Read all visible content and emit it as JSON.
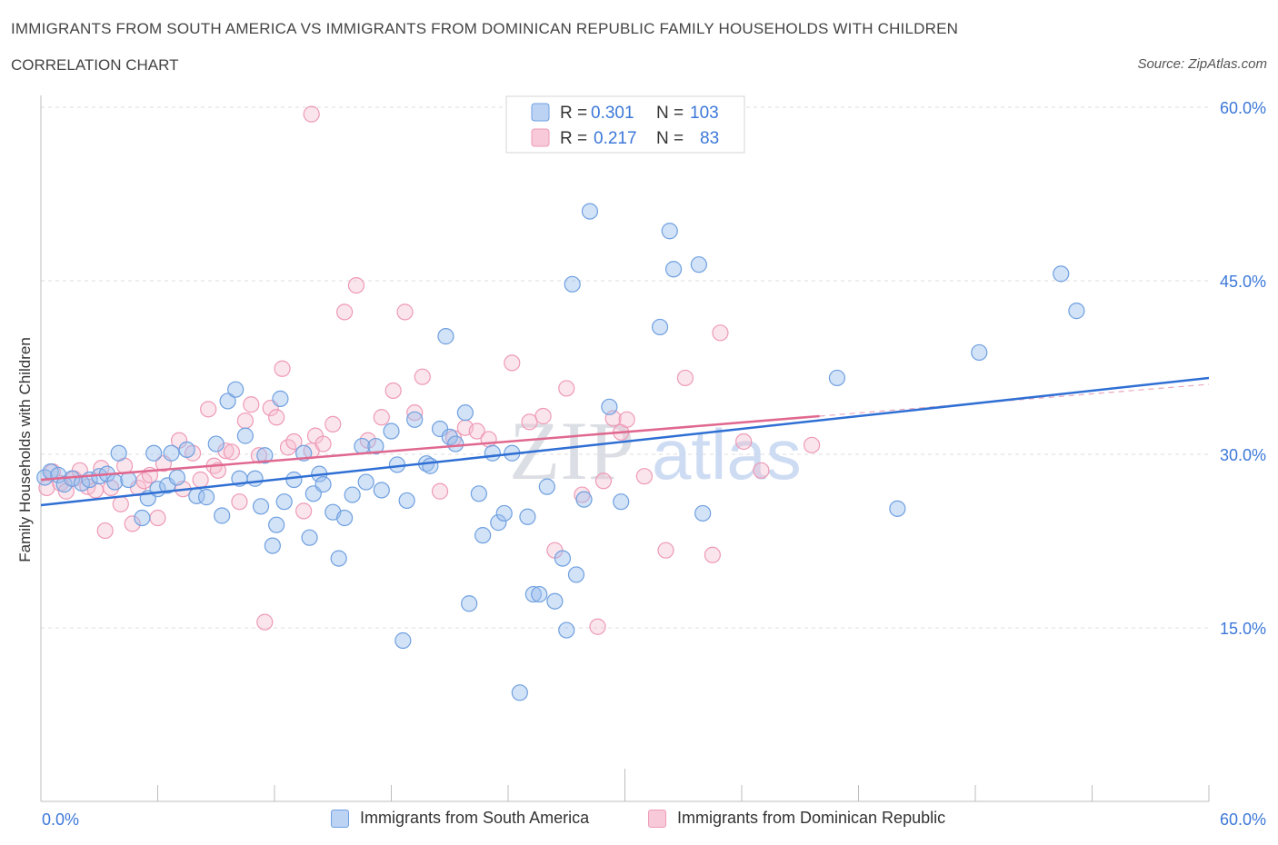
{
  "title": "IMMIGRANTS FROM SOUTH AMERICA VS IMMIGRANTS FROM DOMINICAN REPUBLIC FAMILY HOUSEHOLDS WITH CHILDREN",
  "subtitle": "CORRELATION CHART",
  "source": "Source: ZipAtlas.com",
  "watermark": {
    "zip": "ZIP",
    "atlas": "atlas"
  },
  "colors": {
    "blue": "#6fa0e0",
    "blue_line": "#2f6fd4",
    "pink": "#ee9ab6",
    "pink_line": "#e0688f",
    "tick_text": "#3c78d8"
  },
  "stats": {
    "blue": {
      "r_label": "R =",
      "r_value": "0.301",
      "n_label": "N =",
      "n_value": "103"
    },
    "pink": {
      "r_label": "R =",
      "r_value": "0.217",
      "n_label": "N =",
      "n_value": "83"
    }
  },
  "chart_data": {
    "type": "scatter",
    "title": "IMMIGRANTS FROM SOUTH AMERICA VS IMMIGRANTS FROM DOMINICAN REPUBLIC FAMILY HOUSEHOLDS WITH CHILDREN",
    "xlabel": "",
    "ylabel": "Family Households with Children",
    "xlim": [
      0,
      60
    ],
    "ylim": [
      0,
      60
    ],
    "x_tick_labels": [
      "0.0%",
      "60.0%"
    ],
    "y_ticks": [
      15,
      30,
      45,
      60
    ],
    "y_tick_labels": [
      "15.0%",
      "30.0%",
      "45.0%",
      "60.0%"
    ],
    "grid": true,
    "legend": "bottom",
    "series": [
      {
        "name": "Immigrants from South America",
        "color": "#6fa0e0",
        "trend": {
          "x": [
            0,
            60
          ],
          "y": [
            25.6,
            36.6
          ]
        },
        "points": [
          [
            0.2,
            28.0
          ],
          [
            0.5,
            28.5
          ],
          [
            0.9,
            28.2
          ],
          [
            1.2,
            27.4
          ],
          [
            1.6,
            27.9
          ],
          [
            2.1,
            27.5
          ],
          [
            2.5,
            27.8
          ],
          [
            3.0,
            28.1
          ],
          [
            3.4,
            28.3
          ],
          [
            3.8,
            27.6
          ],
          [
            4.0,
            30.1
          ],
          [
            4.5,
            27.8
          ],
          [
            5.2,
            24.5
          ],
          [
            5.5,
            26.2
          ],
          [
            5.8,
            30.1
          ],
          [
            6.0,
            27.0
          ],
          [
            6.5,
            27.3
          ],
          [
            6.7,
            30.1
          ],
          [
            7.0,
            28.0
          ],
          [
            7.5,
            30.4
          ],
          [
            8.0,
            26.4
          ],
          [
            8.5,
            26.3
          ],
          [
            9.0,
            30.9
          ],
          [
            9.3,
            24.7
          ],
          [
            9.6,
            34.6
          ],
          [
            10.0,
            35.6
          ],
          [
            10.2,
            27.9
          ],
          [
            10.5,
            31.6
          ],
          [
            11.0,
            27.9
          ],
          [
            11.3,
            25.5
          ],
          [
            11.5,
            29.9
          ],
          [
            11.9,
            22.1
          ],
          [
            12.1,
            23.9
          ],
          [
            12.3,
            34.8
          ],
          [
            12.5,
            25.9
          ],
          [
            13.0,
            27.8
          ],
          [
            13.5,
            30.1
          ],
          [
            13.8,
            22.8
          ],
          [
            14.0,
            26.6
          ],
          [
            14.3,
            28.3
          ],
          [
            14.5,
            27.4
          ],
          [
            15.0,
            25.0
          ],
          [
            15.3,
            21.0
          ],
          [
            15.6,
            24.5
          ],
          [
            16.0,
            26.5
          ],
          [
            16.5,
            30.7
          ],
          [
            16.7,
            27.6
          ],
          [
            17.2,
            30.7
          ],
          [
            17.5,
            26.9
          ],
          [
            18.0,
            32.0
          ],
          [
            18.3,
            29.1
          ],
          [
            18.6,
            13.9
          ],
          [
            18.8,
            26.0
          ],
          [
            19.2,
            33.0
          ],
          [
            19.8,
            29.2
          ],
          [
            20.0,
            29.0
          ],
          [
            20.5,
            32.2
          ],
          [
            20.8,
            40.2
          ],
          [
            21.0,
            31.5
          ],
          [
            21.3,
            30.9
          ],
          [
            21.8,
            33.6
          ],
          [
            22.0,
            17.1
          ],
          [
            22.5,
            26.6
          ],
          [
            22.7,
            23.0
          ],
          [
            23.2,
            30.1
          ],
          [
            23.5,
            24.1
          ],
          [
            23.8,
            24.9
          ],
          [
            24.2,
            30.1
          ],
          [
            24.6,
            9.4
          ],
          [
            25.0,
            24.6
          ],
          [
            25.3,
            17.9
          ],
          [
            25.6,
            17.9
          ],
          [
            26.0,
            27.2
          ],
          [
            26.4,
            17.3
          ],
          [
            26.8,
            21.0
          ],
          [
            27.0,
            14.8
          ],
          [
            27.3,
            44.7
          ],
          [
            27.5,
            19.6
          ],
          [
            27.9,
            26.1
          ],
          [
            28.2,
            51.0
          ],
          [
            29.2,
            34.1
          ],
          [
            29.8,
            25.9
          ],
          [
            31.8,
            41.0
          ],
          [
            32.3,
            49.3
          ],
          [
            32.5,
            46.0
          ],
          [
            33.8,
            46.4
          ],
          [
            34.0,
            24.9
          ],
          [
            40.9,
            36.6
          ],
          [
            44.0,
            25.3
          ],
          [
            48.2,
            38.8
          ],
          [
            52.4,
            45.6
          ],
          [
            53.2,
            42.4
          ]
        ]
      },
      {
        "name": "Immigrants from Dominican Republic",
        "color": "#ee9ab6",
        "trend": {
          "x": [
            0,
            40
          ],
          "y": [
            27.8,
            33.3
          ]
        },
        "points": [
          [
            0.3,
            27.1
          ],
          [
            0.6,
            28.5
          ],
          [
            1.0,
            27.5
          ],
          [
            1.3,
            26.8
          ],
          [
            1.7,
            27.9
          ],
          [
            2.0,
            28.6
          ],
          [
            2.4,
            27.2
          ],
          [
            2.8,
            26.9
          ],
          [
            3.1,
            28.8
          ],
          [
            3.3,
            23.4
          ],
          [
            3.6,
            27.1
          ],
          [
            4.1,
            25.7
          ],
          [
            4.3,
            29.0
          ],
          [
            4.7,
            24.0
          ],
          [
            5.0,
            27.1
          ],
          [
            5.3,
            27.7
          ],
          [
            5.6,
            28.2
          ],
          [
            6.0,
            24.5
          ],
          [
            6.3,
            29.2
          ],
          [
            7.1,
            31.2
          ],
          [
            7.3,
            27.0
          ],
          [
            7.8,
            30.1
          ],
          [
            8.2,
            27.8
          ],
          [
            8.6,
            33.9
          ],
          [
            8.9,
            29.0
          ],
          [
            9.1,
            28.6
          ],
          [
            9.5,
            30.3
          ],
          [
            9.8,
            30.2
          ],
          [
            10.2,
            25.9
          ],
          [
            10.5,
            32.9
          ],
          [
            10.8,
            34.3
          ],
          [
            11.2,
            29.9
          ],
          [
            11.5,
            15.5
          ],
          [
            11.8,
            34.0
          ],
          [
            12.1,
            33.2
          ],
          [
            12.4,
            37.4
          ],
          [
            12.7,
            30.6
          ],
          [
            13.0,
            31.1
          ],
          [
            13.5,
            25.1
          ],
          [
            13.9,
            30.3
          ],
          [
            14.1,
            31.6
          ],
          [
            14.5,
            30.9
          ],
          [
            15.0,
            32.6
          ],
          [
            15.6,
            42.3
          ],
          [
            16.2,
            44.6
          ],
          [
            16.8,
            31.2
          ],
          [
            17.5,
            33.2
          ],
          [
            18.1,
            35.5
          ],
          [
            18.7,
            42.3
          ],
          [
            19.2,
            33.6
          ],
          [
            19.6,
            36.7
          ],
          [
            20.5,
            26.8
          ],
          [
            21.2,
            31.4
          ],
          [
            21.8,
            32.3
          ],
          [
            22.4,
            32.0
          ],
          [
            23.0,
            31.3
          ],
          [
            24.2,
            37.9
          ],
          [
            25.1,
            32.8
          ],
          [
            25.8,
            33.3
          ],
          [
            26.4,
            21.7
          ],
          [
            27.0,
            35.7
          ],
          [
            27.8,
            26.5
          ],
          [
            28.6,
            15.1
          ],
          [
            28.9,
            27.7
          ],
          [
            29.4,
            33.1
          ],
          [
            29.8,
            31.9
          ],
          [
            30.1,
            33.0
          ],
          [
            31.0,
            28.1
          ],
          [
            32.1,
            21.7
          ],
          [
            33.1,
            36.6
          ],
          [
            34.5,
            21.3
          ],
          [
            34.9,
            40.5
          ],
          [
            36.1,
            31.1
          ],
          [
            37.0,
            28.6
          ],
          [
            39.6,
            30.8
          ],
          [
            13.9,
            59.4
          ]
        ]
      }
    ]
  },
  "legend": {
    "blue_label": "Immigrants from South America",
    "pink_label": "Immigrants from Dominican Republic"
  }
}
